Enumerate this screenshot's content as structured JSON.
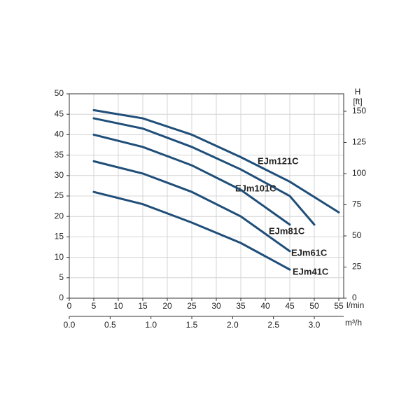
{
  "chart_data": {
    "type": "line",
    "x_label": "l/min",
    "x2_label": "m³/h",
    "y2_label_top": "H",
    "y2_label": "[ft]",
    "xlim": [
      0,
      56
    ],
    "xticks": [
      0,
      5,
      10,
      15,
      20,
      25,
      30,
      35,
      40,
      45,
      50,
      55
    ],
    "x2lim": [
      0,
      3.36
    ],
    "x2ticks": [
      {
        "value": 0,
        "label": "0.0"
      },
      0.5,
      {
        "value": 1,
        "label": "1.0"
      },
      1.5,
      {
        "value": 2,
        "label": "2.0"
      },
      2.5,
      {
        "value": 3,
        "label": "3.0"
      }
    ],
    "ylim": [
      0,
      50
    ],
    "yticks": [
      0,
      5,
      10,
      15,
      20,
      25,
      30,
      35,
      40,
      45,
      50
    ],
    "y2lim": [
      0,
      164.04
    ],
    "y2ticks": [
      0,
      25,
      50,
      75,
      100,
      125,
      150
    ],
    "grid": true,
    "series": [
      {
        "name": "EJm121C",
        "color": "#1f4e79",
        "x": [
          5,
          15,
          25,
          35,
          45,
          55
        ],
        "values": [
          46,
          44,
          40,
          34.5,
          28.5,
          21
        ]
      },
      {
        "name": "EJm101C",
        "color": "#1f4e79",
        "x": [
          5,
          15,
          25,
          35,
          45,
          50
        ],
        "values": [
          44,
          41.5,
          37,
          31.5,
          25,
          18
        ]
      },
      {
        "name": "EJm81C",
        "color": "#1f4e79",
        "x": [
          5,
          15,
          25,
          35,
          45
        ],
        "values": [
          40,
          37,
          32.5,
          26.5,
          18
        ]
      },
      {
        "name": "EJm61C",
        "color": "#1f4e79",
        "x": [
          5,
          15,
          25,
          35,
          45
        ],
        "values": [
          33.5,
          30.5,
          26,
          20,
          11.5
        ]
      },
      {
        "name": "EJm41C",
        "color": "#1f4e79",
        "x": [
          5,
          15,
          25,
          35,
          45
        ],
        "values": [
          26,
          23,
          18.5,
          13.5,
          7
        ]
      }
    ]
  }
}
